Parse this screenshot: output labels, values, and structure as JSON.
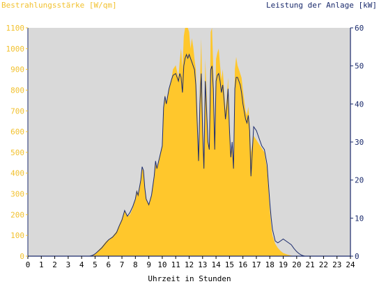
{
  "chart_data": {
    "type": "area",
    "left_axis_title": "Bestrahlungsstärke [W/qm]",
    "right_axis_title": "Leistung der Anlage [kW]",
    "xlabel": "Uhrzeit in Stunden",
    "xlim": [
      0,
      24
    ],
    "x_ticks": [
      "0",
      "1",
      "2",
      "3",
      "4",
      "5",
      "6",
      "7",
      "8",
      "9",
      "10",
      "11",
      "12",
      "13",
      "14",
      "15",
      "16",
      "17",
      "18",
      "19",
      "20",
      "21",
      "22",
      "23",
      "24"
    ],
    "y_left_lim": [
      0,
      1100
    ],
    "y_left_ticks": [
      "0",
      "100",
      "200",
      "300",
      "400",
      "500",
      "600",
      "700",
      "800",
      "900",
      "1000",
      "1100"
    ],
    "y_right_lim": [
      0,
      60
    ],
    "y_right_ticks": [
      "0",
      "10",
      "20",
      "30",
      "40",
      "50",
      "60"
    ],
    "series": [
      {
        "color": "#ffc72c",
        "axis": "left",
        "kind": "area",
        "points": [
          [
            0,
            0
          ],
          [
            4.6,
            0
          ],
          [
            4.8,
            3
          ],
          [
            5,
            10
          ],
          [
            5.2,
            25
          ],
          [
            5.5,
            45
          ],
          [
            5.8,
            70
          ],
          [
            6,
            80
          ],
          [
            6.3,
            95
          ],
          [
            6.6,
            120
          ],
          [
            6.8,
            150
          ],
          [
            7,
            180
          ],
          [
            7.2,
            220
          ],
          [
            7.4,
            190
          ],
          [
            7.6,
            200
          ],
          [
            7.8,
            230
          ],
          [
            8,
            280
          ],
          [
            8.1,
            320
          ],
          [
            8.2,
            300
          ],
          [
            8.4,
            360
          ],
          [
            8.5,
            420
          ],
          [
            8.6,
            410
          ],
          [
            8.7,
            330
          ],
          [
            8.8,
            280
          ],
          [
            9,
            250
          ],
          [
            9.2,
            290
          ],
          [
            9.4,
            380
          ],
          [
            9.5,
            450
          ],
          [
            9.6,
            420
          ],
          [
            9.8,
            470
          ],
          [
            10,
            530
          ],
          [
            10.1,
            720
          ],
          [
            10.2,
            780
          ],
          [
            10.3,
            740
          ],
          [
            10.5,
            800
          ],
          [
            10.7,
            860
          ],
          [
            10.8,
            900
          ],
          [
            11,
            920
          ],
          [
            11.2,
            860
          ],
          [
            11.3,
            940
          ],
          [
            11.4,
            1000
          ],
          [
            11.5,
            900
          ],
          [
            11.6,
            1060
          ],
          [
            11.7,
            1150
          ],
          [
            11.8,
            1100
          ],
          [
            11.9,
            1130
          ],
          [
            12,
            1080
          ],
          [
            12.1,
            1000
          ],
          [
            12.2,
            1050
          ],
          [
            12.3,
            1010
          ],
          [
            12.4,
            950
          ],
          [
            12.5,
            900
          ],
          [
            12.6,
            700
          ],
          [
            12.7,
            480
          ],
          [
            12.8,
            820
          ],
          [
            12.9,
            1050
          ],
          [
            13,
            700
          ],
          [
            13.1,
            420
          ],
          [
            13.2,
            950
          ],
          [
            13.3,
            780
          ],
          [
            13.4,
            560
          ],
          [
            13.5,
            520
          ],
          [
            13.6,
            1080
          ],
          [
            13.7,
            1120
          ],
          [
            13.8,
            900
          ],
          [
            13.9,
            560
          ],
          [
            14,
            950
          ],
          [
            14.1,
            980
          ],
          [
            14.2,
            1000
          ],
          [
            14.3,
            920
          ],
          [
            14.4,
            850
          ],
          [
            14.5,
            900
          ],
          [
            14.6,
            800
          ],
          [
            14.7,
            700
          ],
          [
            14.8,
            760
          ],
          [
            14.9,
            860
          ],
          [
            15,
            640
          ],
          [
            15.1,
            480
          ],
          [
            15.2,
            560
          ],
          [
            15.3,
            420
          ],
          [
            15.4,
            900
          ],
          [
            15.5,
            960
          ],
          [
            15.6,
            920
          ],
          [
            15.7,
            900
          ],
          [
            15.8,
            880
          ],
          [
            15.9,
            860
          ],
          [
            16,
            800
          ],
          [
            16.2,
            700
          ],
          [
            16.3,
            680
          ],
          [
            16.4,
            720
          ],
          [
            16.5,
            640
          ],
          [
            16.6,
            500
          ],
          [
            16.8,
            580
          ],
          [
            17,
            560
          ],
          [
            17.2,
            540
          ],
          [
            17.4,
            520
          ],
          [
            17.6,
            500
          ],
          [
            17.8,
            420
          ],
          [
            17.9,
            320
          ],
          [
            18,
            220
          ],
          [
            18.1,
            150
          ],
          [
            18.2,
            100
          ],
          [
            18.4,
            60
          ],
          [
            18.6,
            40
          ],
          [
            18.8,
            25
          ],
          [
            19,
            15
          ],
          [
            19.3,
            8
          ],
          [
            19.6,
            3
          ],
          [
            19.9,
            0
          ],
          [
            24,
            0
          ]
        ]
      },
      {
        "color": "#1a2a6c",
        "axis": "right",
        "kind": "line",
        "points": [
          [
            0,
            0
          ],
          [
            4.6,
            0
          ],
          [
            4.8,
            0.2
          ],
          [
            5,
            0.6
          ],
          [
            5.2,
            1.2
          ],
          [
            5.5,
            2.2
          ],
          [
            5.8,
            3.5
          ],
          [
            6,
            4.3
          ],
          [
            6.3,
            5
          ],
          [
            6.6,
            6.2
          ],
          [
            6.8,
            8
          ],
          [
            7,
            9.5
          ],
          [
            7.2,
            12
          ],
          [
            7.4,
            10.5
          ],
          [
            7.6,
            11.5
          ],
          [
            7.8,
            13
          ],
          [
            8,
            15
          ],
          [
            8.1,
            17
          ],
          [
            8.2,
            16
          ],
          [
            8.4,
            20
          ],
          [
            8.5,
            23.5
          ],
          [
            8.6,
            22.5
          ],
          [
            8.7,
            18
          ],
          [
            8.8,
            15
          ],
          [
            9,
            13.5
          ],
          [
            9.2,
            16
          ],
          [
            9.4,
            21
          ],
          [
            9.5,
            25
          ],
          [
            9.6,
            23
          ],
          [
            9.8,
            26
          ],
          [
            10,
            29
          ],
          [
            10.1,
            39
          ],
          [
            10.2,
            42
          ],
          [
            10.3,
            40
          ],
          [
            10.5,
            44
          ],
          [
            10.7,
            46.5
          ],
          [
            10.8,
            47.5
          ],
          [
            11,
            48
          ],
          [
            11.2,
            46
          ],
          [
            11.3,
            48
          ],
          [
            11.4,
            47
          ],
          [
            11.5,
            43
          ],
          [
            11.6,
            50
          ],
          [
            11.7,
            52
          ],
          [
            11.8,
            53
          ],
          [
            11.9,
            52
          ],
          [
            12,
            53
          ],
          [
            12.1,
            52
          ],
          [
            12.2,
            51
          ],
          [
            12.3,
            50
          ],
          [
            12.4,
            49
          ],
          [
            12.5,
            45
          ],
          [
            12.6,
            35
          ],
          [
            12.7,
            25
          ],
          [
            12.8,
            40
          ],
          [
            12.9,
            48
          ],
          [
            13,
            33
          ],
          [
            13.1,
            23
          ],
          [
            13.2,
            46
          ],
          [
            13.3,
            38
          ],
          [
            13.4,
            30
          ],
          [
            13.5,
            28
          ],
          [
            13.6,
            49
          ],
          [
            13.7,
            50
          ],
          [
            13.8,
            44
          ],
          [
            13.9,
            28
          ],
          [
            14,
            46
          ],
          [
            14.1,
            47.5
          ],
          [
            14.2,
            48
          ],
          [
            14.3,
            46
          ],
          [
            14.4,
            43
          ],
          [
            14.5,
            45
          ],
          [
            14.6,
            41
          ],
          [
            14.7,
            36
          ],
          [
            14.8,
            39
          ],
          [
            14.9,
            44
          ],
          [
            15,
            33
          ],
          [
            15.1,
            26
          ],
          [
            15.2,
            30
          ],
          [
            15.3,
            23
          ],
          [
            15.4,
            44
          ],
          [
            15.5,
            47
          ],
          [
            15.6,
            47
          ],
          [
            15.7,
            46
          ],
          [
            15.8,
            45
          ],
          [
            15.9,
            43
          ],
          [
            16,
            40
          ],
          [
            16.2,
            36
          ],
          [
            16.3,
            35
          ],
          [
            16.4,
            37
          ],
          [
            16.5,
            33
          ],
          [
            16.6,
            21
          ],
          [
            16.8,
            34
          ],
          [
            17,
            33
          ],
          [
            17.2,
            31
          ],
          [
            17.4,
            29
          ],
          [
            17.6,
            28
          ],
          [
            17.8,
            24
          ],
          [
            17.9,
            19
          ],
          [
            18,
            14
          ],
          [
            18.1,
            10
          ],
          [
            18.2,
            7
          ],
          [
            18.4,
            4
          ],
          [
            18.6,
            3.5
          ],
          [
            18.8,
            4
          ],
          [
            19,
            4.5
          ],
          [
            19.2,
            4
          ],
          [
            19.4,
            3.5
          ],
          [
            19.6,
            3
          ],
          [
            19.8,
            2
          ],
          [
            20,
            1.2
          ],
          [
            20.2,
            0.6
          ],
          [
            20.4,
            0.2
          ],
          [
            20.6,
            0
          ],
          [
            24,
            0
          ]
        ]
      }
    ]
  }
}
